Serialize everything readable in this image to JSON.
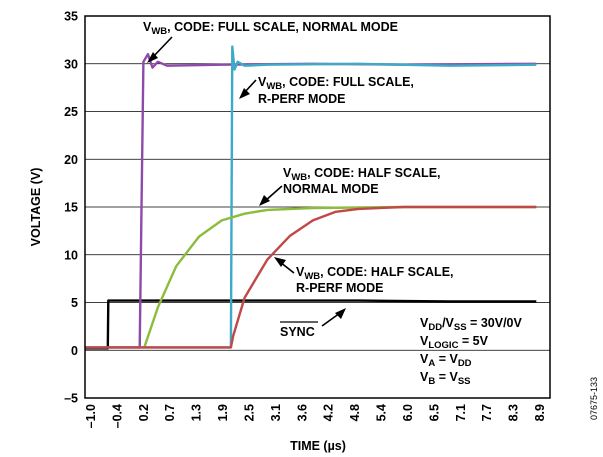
{
  "chart_data": {
    "type": "line",
    "title": "",
    "xlabel": "TIME (µs)",
    "ylabel": "VOLTAGE (V)",
    "xlim": [
      -1.0,
      9.2
    ],
    "ylim": [
      -5,
      35
    ],
    "yticks": [
      "35",
      "30",
      "25",
      "20",
      "15",
      "10",
      "5",
      "0",
      "–5"
    ],
    "xticks": [
      "–1.0",
      "–0.4",
      "0.2",
      "0.7",
      "1.3",
      "1.9",
      "2.5",
      "3.1",
      "3.6",
      "4.2",
      "4.8",
      "5.4",
      "6.0",
      "6.5",
      "7.1",
      "7.7",
      "8.3",
      "8.9"
    ],
    "grid": "horizontal",
    "series": [
      {
        "name": "SYNC",
        "color": "#000000",
        "points": [
          [
            -1.0,
            0.2
          ],
          [
            -0.5,
            0.2
          ],
          [
            -0.49,
            5.2
          ],
          [
            0.2,
            5.2
          ],
          [
            2.0,
            5.2
          ],
          [
            5.0,
            5.2
          ],
          [
            7.0,
            5.1
          ],
          [
            8.9,
            5.1
          ]
        ]
      },
      {
        "name": "VWB, CODE: FULL SCALE, NORMAL MODE",
        "color": "#8e4aa8",
        "points": [
          [
            -1.0,
            0.3
          ],
          [
            0.2,
            0.3
          ],
          [
            0.28,
            30.2
          ],
          [
            0.38,
            31.0
          ],
          [
            0.48,
            29.6
          ],
          [
            0.6,
            30.2
          ],
          [
            0.8,
            29.8
          ],
          [
            2.0,
            29.9
          ],
          [
            4.0,
            30.0
          ],
          [
            6.0,
            29.9
          ],
          [
            8.9,
            30.0
          ]
        ]
      },
      {
        "name": "VWB, CODE: FULL SCALE, R-PERF MODE",
        "color": "#3eaac8",
        "points": [
          [
            -1.0,
            0.3
          ],
          [
            2.2,
            0.3
          ],
          [
            2.23,
            31.8
          ],
          [
            2.28,
            29.4
          ],
          [
            2.35,
            30.2
          ],
          [
            2.5,
            29.8
          ],
          [
            3.0,
            29.9
          ],
          [
            5.0,
            30.0
          ],
          [
            7.0,
            29.8
          ],
          [
            8.9,
            29.9
          ]
        ]
      },
      {
        "name": "VWB, CODE: HALF SCALE, NORMAL MODE",
        "color": "#8cbc3c",
        "points": [
          [
            0.3,
            0.3
          ],
          [
            0.6,
            4.5
          ],
          [
            1.0,
            8.8
          ],
          [
            1.5,
            11.9
          ],
          [
            2.0,
            13.6
          ],
          [
            2.5,
            14.3
          ],
          [
            3.0,
            14.7
          ],
          [
            4.0,
            14.9
          ],
          [
            6.0,
            15.0
          ],
          [
            8.9,
            15.0
          ]
        ]
      },
      {
        "name": "VWB, CODE: HALF SCALE, R-PERF MODE",
        "color": "#c04848",
        "points": [
          [
            -1.0,
            0.3
          ],
          [
            2.2,
            0.3
          ],
          [
            2.25,
            1.5
          ],
          [
            2.5,
            5.5
          ],
          [
            3.0,
            9.5
          ],
          [
            3.5,
            12.0
          ],
          [
            4.0,
            13.6
          ],
          [
            4.5,
            14.5
          ],
          [
            5.0,
            14.8
          ],
          [
            6.0,
            15.0
          ],
          [
            8.9,
            15.0
          ]
        ]
      }
    ],
    "annotations": {
      "a1": {
        "main": "V",
        "sub": "WB",
        "rest": ", CODE: FULL SCALE, NORMAL MODE"
      },
      "a2": {
        "main": "V",
        "sub": "WB",
        "rest": ", CODE: FULL SCALE,",
        "line2": "R-PERF MODE"
      },
      "a3": {
        "main": "V",
        "sub": "WB",
        "rest": ", CODE: HALF SCALE,",
        "line2": "NORMAL MODE"
      },
      "a4": {
        "main": "V",
        "sub": "WB",
        "rest": ", CODE: HALF SCALE,",
        "line2": "R-PERF MODE"
      },
      "sync": "SYNC"
    },
    "conditions": [
      {
        "v": "V",
        "s1": "DD",
        "m": "/V",
        "s2": "SS",
        "rest": " = 30V/0V"
      },
      {
        "v": "V",
        "s1": "LOGIC",
        "rest": " = 5V"
      },
      {
        "v": "V",
        "s1": "A",
        "m": " = V",
        "s2": "DD"
      },
      {
        "v": "V",
        "s1": "B",
        "m": " = V",
        "s2": "SS"
      }
    ],
    "figure_id": "07675-133"
  }
}
